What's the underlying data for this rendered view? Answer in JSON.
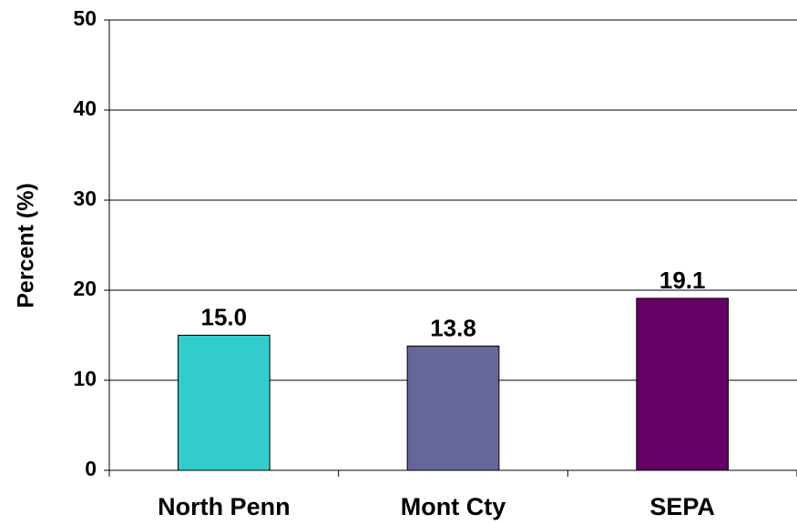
{
  "chart_data": {
    "type": "bar",
    "y_label": "Percent (%)",
    "categories": [
      "North Penn",
      "Mont Cty",
      "SEPA"
    ],
    "values": [
      15.0,
      13.8,
      19.1
    ],
    "value_labels": [
      "15.0",
      "13.8",
      "19.1"
    ],
    "colors": [
      "#33cccc",
      "#666699",
      "#660066"
    ],
    "ylim": [
      0,
      50
    ],
    "yticks": [
      0,
      10,
      20,
      30,
      40,
      50
    ],
    "grid": true
  }
}
